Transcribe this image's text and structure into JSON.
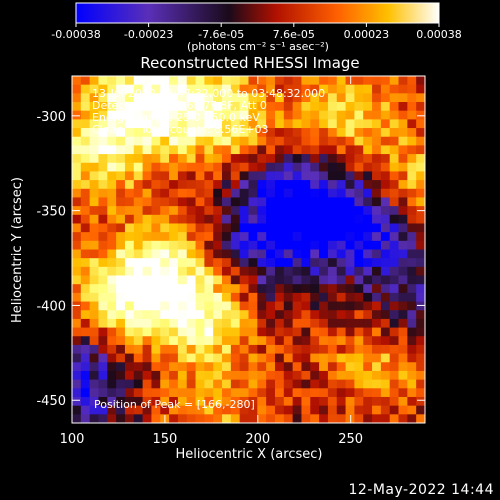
{
  "colorbar": {
    "tick_labels": [
      "-0.00038",
      "-0.00023",
      "-7.6e-05",
      "7.6e-05",
      "0.00023",
      "0.00038"
    ],
    "unit_label": "(photons cm⁻² s⁻¹ asec⁻²)",
    "range": [
      -0.00038,
      0.00038
    ]
  },
  "image_info": {
    "lines": [
      "13-Jul-2012 03:47:32.000 to 03:48:32.000",
      "Detectors: 3F 5F 6F 7F 8F, Att 0",
      "Energy Range: 25.0 - 50.0 keV",
      "Clean     Total counts: 6.56E+03"
    ],
    "peak_label": "Position of Peak = [166,-280]"
  },
  "footer": {
    "timestamp": "12-May-2022 14:44"
  },
  "chart_data": {
    "type": "heatmap",
    "title": "Reconstructed RHESSI Image",
    "xlabel": "Heliocentric X (arcsec)",
    "ylabel": "Heliocentric Y (arcsec)",
    "xlim": [
      100,
      290
    ],
    "ylim": [
      -462,
      -279
    ],
    "xticks": [
      100,
      150,
      200,
      250
    ],
    "yticks": [
      -300,
      -350,
      -400,
      -450
    ],
    "colormap": [
      "#0000ff",
      "#5a2fb8",
      "#1a0a1a",
      "#b01000",
      "#ff6000",
      "#ffc000",
      "#ffff80",
      "#ffffff"
    ],
    "peak": [
      166,
      -280
    ],
    "grid_cols": 40,
    "grid_rows": 40,
    "regions": [
      {
        "label": "bright",
        "x": 140,
        "y": -290,
        "strength": 1.0
      },
      {
        "label": "bright",
        "x": 180,
        "y": -300,
        "strength": 0.9
      },
      {
        "label": "bright",
        "x": 250,
        "y": -300,
        "strength": 0.7
      },
      {
        "label": "bright",
        "x": 285,
        "y": -340,
        "strength": 0.8
      },
      {
        "label": "bright",
        "x": 115,
        "y": -320,
        "strength": 0.8
      },
      {
        "label": "bright",
        "x": 170,
        "y": -405,
        "strength": 0.95
      },
      {
        "label": "bright",
        "x": 125,
        "y": -395,
        "strength": 0.8
      },
      {
        "label": "bright",
        "x": 150,
        "y": -380,
        "strength": 0.7
      },
      {
        "label": "bright",
        "x": 265,
        "y": -430,
        "strength": 0.6
      },
      {
        "label": "bright",
        "x": 175,
        "y": -455,
        "strength": 0.5
      },
      {
        "label": "dim",
        "x": 220,
        "y": -345,
        "strength": -0.9
      },
      {
        "label": "dim",
        "x": 260,
        "y": -355,
        "strength": -1.0
      },
      {
        "label": "dim",
        "x": 105,
        "y": -440,
        "strength": -0.7
      },
      {
        "label": "dim",
        "x": 200,
        "y": -375,
        "strength": -0.6
      },
      {
        "label": "dim",
        "x": 285,
        "y": -400,
        "strength": -0.5
      }
    ]
  }
}
